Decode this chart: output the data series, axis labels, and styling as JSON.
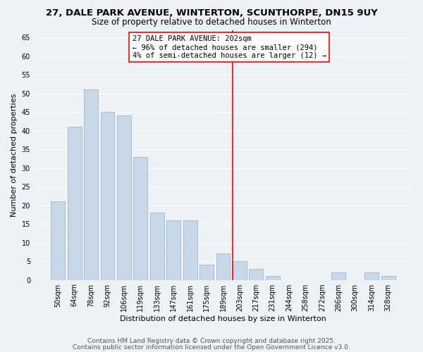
{
  "title": "27, DALE PARK AVENUE, WINTERTON, SCUNTHORPE, DN15 9UY",
  "subtitle": "Size of property relative to detached houses in Winterton",
  "xlabel": "Distribution of detached houses by size in Winterton",
  "ylabel": "Number of detached properties",
  "bar_labels": [
    "50sqm",
    "64sqm",
    "78sqm",
    "92sqm",
    "106sqm",
    "119sqm",
    "133sqm",
    "147sqm",
    "161sqm",
    "175sqm",
    "189sqm",
    "203sqm",
    "217sqm",
    "231sqm",
    "244sqm",
    "258sqm",
    "272sqm",
    "286sqm",
    "300sqm",
    "314sqm",
    "328sqm"
  ],
  "bar_values": [
    21,
    41,
    51,
    45,
    44,
    33,
    18,
    16,
    16,
    4,
    7,
    5,
    3,
    1,
    0,
    0,
    0,
    2,
    0,
    2,
    1
  ],
  "bar_color": "#c8d8e8",
  "bar_edge_color": "#a0b8cc",
  "vline_index": 11,
  "vline_color": "red",
  "annotation_title": "27 DALE PARK AVENUE: 202sqm",
  "annotation_line1": "← 96% of detached houses are smaller (294)",
  "annotation_line2": "4% of semi-detached houses are larger (12) →",
  "ylim": [
    0,
    67
  ],
  "yticks": [
    0,
    5,
    10,
    15,
    20,
    25,
    30,
    35,
    40,
    45,
    50,
    55,
    60,
    65
  ],
  "footer1": "Contains HM Land Registry data © Crown copyright and database right 2025.",
  "footer2": "Contains public sector information licensed under the Open Government Licence v3.0.",
  "background_color": "#eef2f6",
  "grid_color": "#ffffff",
  "title_fontsize": 9.5,
  "subtitle_fontsize": 8.5,
  "axis_label_fontsize": 8,
  "tick_label_fontsize": 7,
  "annotation_fontsize": 7.5,
  "footer_fontsize": 6.5
}
